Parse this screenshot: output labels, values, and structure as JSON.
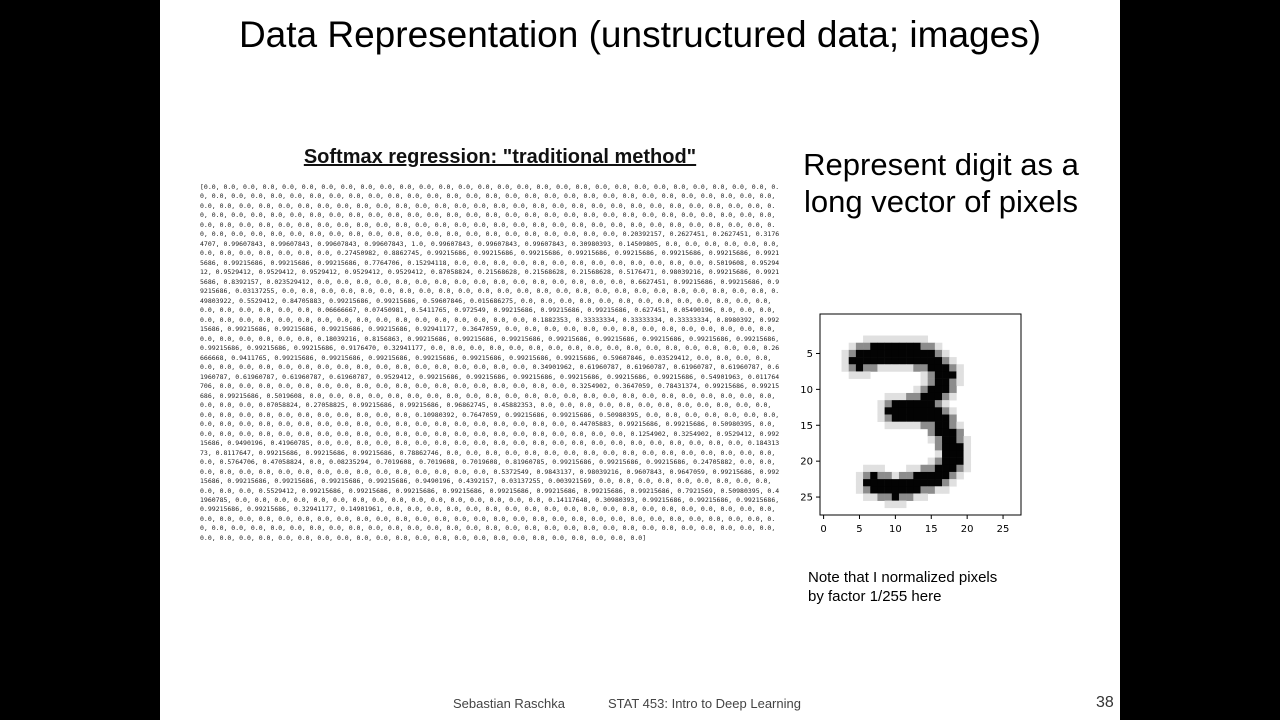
{
  "slide": {
    "title": "Data Representation (unstructured data; images)",
    "code_heading": "Softmax regression: \"traditional method\"",
    "right_heading_line1": "Represent digit as a",
    "right_heading_line2": "long vector of pixels",
    "note_line1": "Note that I normalized pixels",
    "note_line2": "by factor 1/255 here",
    "footer_author": "Sebastian Raschka",
    "footer_course": "STAT 453: Intro to Deep Learning",
    "page_number": "38"
  },
  "pixel_vector_text": "[0.0, 0.0, 0.0, 0.0, 0.0, 0.0, 0.0, 0.0, 0.0, 0.0, 0.0, 0.0, 0.0, 0.0, 0.0, 0.0, 0.0, 0.0, 0.0, 0.0, 0.0, 0.0, 0.0, 0.0, 0.0, 0.0, 0.0, 0.0, 0.0, 0.0, 0.0, 0.0, 0.0, 0.0, 0.0, 0.0, 0.0, 0.0, 0.0, 0.0, 0.0, 0.0, 0.0, 0.0, 0.0, 0.0, 0.0, 0.0, 0.0, 0.0, 0.0, 0.0, 0.0, 0.0, 0.0, 0.0, 0.0, 0.0, 0.0, 0.0, 0.0, 0.0, 0.0, 0.0, 0.0, 0.0, 0.0, 0.0, 0.0, 0.0, 0.0, 0.0, 0.0, 0.0, 0.0, 0.0, 0.0, 0.0, 0.0, 0.0, 0.0, 0.0, 0.0, 0.0, 0.0, 0.0, 0.0, 0.0, 0.0, 0.0, 0.0, 0.0, 0.0, 0.0, 0.0, 0.0, 0.0, 0.0, 0.0, 0.0, 0.0, 0.0, 0.0, 0.0, 0.0, 0.0, 0.0, 0.0, 0.0, 0.0, 0.0, 0.0, 0.0, 0.0, 0.0, 0.0, 0.0, 0.0, 0.0, 0.0, 0.0, 0.0, 0.0, 0.0, 0.0, 0.0, 0.0, 0.0, 0.0, 0.0, 0.0, 0.0, 0.0, 0.0, 0.0, 0.0, 0.0, 0.0, 0.0, 0.0, 0.0, 0.0, 0.0, 0.0, 0.0, 0.0, 0.0, 0.0, 0.0, 0.0, 0.0, 0.0, 0.0, 0.0, 0.0, 0.0, 0.0, 0.0, 0.0, 0.0, 0.0, 0.0, 0.0, 0.0, 0.0, 0.0, 0.0, 0.0, 0.0, 0.20392157, 0.2627451, 0.2627451, 0.31764707, 0.99607843, 0.99607843, 0.99607843, 0.99607843, 1.0, 0.99607843, 0.99607843, 0.99607843, 0.30980393, 0.14509805, 0.0, 0.0, 0.0, 0.0, 0.0, 0.0, 0.0, 0.0, 0.0, 0.0, 0.0, 0.0, 0.0, 0.27450982, 0.8862745, 0.99215686, 0.99215686, 0.99215686, 0.99215686, 0.99215686, 0.99215686, 0.99215686, 0.99215686, 0.99215686, 0.99215686, 0.99215686, 0.7764706, 0.15294118, 0.0, 0.0, 0.0, 0.0, 0.0, 0.0, 0.0, 0.0, 0.0, 0.0, 0.0, 0.0, 0.0, 0.5019608, 0.9529412, 0.9529412, 0.9529412, 0.9529412, 0.9529412, 0.9529412, 0.87058824, 0.21568628, 0.21568628, 0.21568628, 0.5176471, 0.98039216, 0.99215686, 0.99215686, 0.8392157, 0.023529412, 0.0, 0.0, 0.0, 0.0, 0.0, 0.0, 0.0, 0.0, 0.0, 0.0, 0.0, 0.0, 0.0, 0.0, 0.0, 0.0, 0.6627451, 0.99215686, 0.99215686, 0.99215686, 0.03137255, 0.0, 0.0, 0.0, 0.0, 0.0, 0.0, 0.0, 0.0, 0.0, 0.0, 0.0, 0.0, 0.0, 0.0, 0.0, 0.0, 0.0, 0.0, 0.0, 0.0, 0.0, 0.0, 0.0, 0.0, 0.0, 0.49803922, 0.5529412, 0.84705883, 0.99215686, 0.99215686, 0.59607846, 0.015686275, 0.0, 0.0, 0.0, 0.0, 0.0, 0.0, 0.0, 0.0, 0.0, 0.0, 0.0, 0.0, 0.0, 0.0, 0.0, 0.0, 0.0, 0.0, 0.0, 0.06666667, 0.07450981, 0.5411765, 0.972549, 0.99215686, 0.99215686, 0.99215686, 0.627451, 0.05490196, 0.0, 0.0, 0.0, 0.0, 0.0, 0.0, 0.0, 0.0, 0.0, 0.0, 0.0, 0.0, 0.0, 0.0, 0.0, 0.0, 0.0, 0.0, 0.0, 0.0, 0.1882353, 0.33333334, 0.33333334, 0.33333334, 0.8980392, 0.99215686, 0.99215686, 0.99215686, 0.99215686, 0.99215686, 0.92941177, 0.3647059, 0.0, 0.0, 0.0, 0.0, 0.0, 0.0, 0.0, 0.0, 0.0, 0.0, 0.0, 0.0, 0.0, 0.0, 0.0, 0.0, 0.0, 0.0, 0.0, 0.0, 0.18039216, 0.8156863, 0.99215686, 0.99215686, 0.99215686, 0.99215686, 0.99215686, 0.99215686, 0.99215686, 0.99215686, 0.99215686, 0.99215686, 0.99215686, 0.9176470, 0.32941177, 0.0, 0.0, 0.0, 0.0, 0.0, 0.0, 0.0, 0.0, 0.0, 0.0, 0.0, 0.0, 0.0, 0.0, 0.0, 0.0, 0.0, 0.26666668, 0.9411765, 0.99215686, 0.99215686, 0.99215686, 0.99215686, 0.99215686, 0.99215686, 0.99215686, 0.59607846, 0.03529412, 0.0, 0.0, 0.0, 0.0, 0.0, 0.0, 0.0, 0.0, 0.0, 0.0, 0.0, 0.0, 0.0, 0.0, 0.0, 0.0, 0.0, 0.0, 0.0, 0.0, 0.0, 0.34901962, 0.61960787, 0.61960787, 0.61960787, 0.61960787, 0.61960787, 0.61960787, 0.61960787, 0.61960787, 0.9529412, 0.99215686, 0.99215686, 0.99215686, 0.99215686, 0.99215686, 0.99215686, 0.54901963, 0.011764706, 0.0, 0.0, 0.0, 0.0, 0.0, 0.0, 0.0, 0.0, 0.0, 0.0, 0.0, 0.0, 0.0, 0.0, 0.0, 0.0, 0.0, 0.0, 0.3254902, 0.3647059, 0.78431374, 0.99215686, 0.99215686, 0.99215686, 0.5019608, 0.0, 0.0, 0.0, 0.0, 0.0, 0.0, 0.0, 0.0, 0.0, 0.0, 0.0, 0.0, 0.0, 0.0, 0.0, 0.0, 0.0, 0.0, 0.0, 0.0, 0.0, 0.0, 0.0, 0.0, 0.0, 0.0, 0.0, 0.07058824, 0.27058825, 0.99215686, 0.99215686, 0.96862745, 0.45882353, 0.0, 0.0, 0.0, 0.0, 0.0, 0.0, 0.0, 0.0, 0.0, 0.0, 0.0, 0.0, 0.0, 0.0, 0.0, 0.0, 0.0, 0.0, 0.0, 0.0, 0.0, 0.0, 0.0, 0.10980392, 0.7647059, 0.99215686, 0.99215686, 0.50980395, 0.0, 0.0, 0.0, 0.0, 0.0, 0.0, 0.0, 0.0, 0.0, 0.0, 0.0, 0.0, 0.0, 0.0, 0.0, 0.0, 0.0, 0.0, 0.0, 0.0, 0.0, 0.0, 0.0, 0.0, 0.0, 0.0, 0.44705883, 0.99215686, 0.99215686, 0.50980395, 0.0, 0.0, 0.0, 0.0, 0.0, 0.0, 0.0, 0.0, 0.0, 0.0, 0.0, 0.0, 0.0, 0.0, 0.0, 0.0, 0.0, 0.0, 0.0, 0.0, 0.0, 0.0, 0.0, 0.1254902, 0.3254902, 0.9529412, 0.99215686, 0.9490196, 0.41960785, 0.0, 0.0, 0.0, 0.0, 0.0, 0.0, 0.0, 0.0, 0.0, 0.0, 0.0, 0.0, 0.0, 0.0, 0.0, 0.0, 0.0, 0.0, 0.0, 0.0, 0.0, 0.0, 0.18431373, 0.8117647, 0.99215686, 0.99215686, 0.99215686, 0.78862746, 0.0, 0.0, 0.0, 0.0, 0.0, 0.0, 0.0, 0.0, 0.0, 0.0, 0.0, 0.0, 0.0, 0.0, 0.0, 0.0, 0.0, 0.0, 0.5764706, 0.47058824, 0.0, 0.08235294, 0.7019608, 0.7019608, 0.7019608, 0.81960785, 0.99215686, 0.99215686, 0.99215686, 0.24705882, 0.0, 0.0, 0.0, 0.0, 0.0, 0.0, 0.0, 0.0, 0.0, 0.0, 0.0, 0.0, 0.0, 0.0, 0.0, 0.0, 0.0, 0.5372549, 0.9843137, 0.98039216, 0.9607843, 0.9647059, 0.99215686, 0.99215686, 0.99215686, 0.99215686, 0.99215686, 0.99215686, 0.9490196, 0.4392157, 0.03137255, 0.003921569, 0.0, 0.0, 0.0, 0.0, 0.0, 0.0, 0.0, 0.0, 0.0, 0.0, 0.0, 0.0, 0.5529412, 0.99215686, 0.99215686, 0.99215686, 0.99215686, 0.99215686, 0.99215686, 0.99215686, 0.99215686, 0.7921569, 0.50980395, 0.41960785, 0.0, 0.0, 0.0, 0.0, 0.0, 0.0, 0.0, 0.0, 0.0, 0.0, 0.0, 0.0, 0.0, 0.0, 0.0, 0.0, 0.14117648, 0.30980393, 0.99215686, 0.99215686, 0.99215686, 0.99215686, 0.99215686, 0.32941177, 0.14901961, 0.0, 0.0, 0.0, 0.0, 0.0, 0.0, 0.0, 0.0, 0.0, 0.0, 0.0, 0.0, 0.0, 0.0, 0.0, 0.0, 0.0, 0.0, 0.0, 0.0, 0.0, 0.0, 0.0, 0.0, 0.0, 0.0, 0.0, 0.0, 0.0, 0.0, 0.0, 0.0, 0.0, 0.0, 0.0, 0.0, 0.0, 0.0, 0.0, 0.0, 0.0, 0.0, 0.0, 0.0, 0.0, 0.0, 0.0, 0.0, 0.0, 0.0, 0.0, 0.0, 0.0, 0.0, 0.0, 0.0, 0.0, 0.0, 0.0, 0.0, 0.0, 0.0, 0.0, 0.0, 0.0, 0.0, 0.0, 0.0, 0.0, 0.0, 0.0, 0.0, 0.0, 0.0, 0.0, 0.0, 0.0, 0.0, 0.0, 0.0, 0.0, 0.0, 0.0, 0.0, 0.0, 0.0, 0.0, 0.0, 0.0, 0.0, 0.0, 0.0, 0.0, 0.0, 0.0, 0.0, 0.0, 0.0, 0.0, 0.0, 0.0, 0.0]",
  "chart_data": {
    "type": "heatmap",
    "colormap": "Greys",
    "xticks": [
      "0",
      "5",
      "10",
      "15",
      "20",
      "25"
    ],
    "yticks": [
      "5",
      "10",
      "15",
      "20",
      "25"
    ],
    "xlim": [
      -0.5,
      27.5
    ],
    "ylim": [
      27.5,
      -0.5
    ],
    "strokes": [
      {
        "points": [
          [
            5,
            6
          ],
          [
            7,
            5
          ],
          [
            10,
            5
          ],
          [
            13,
            5
          ],
          [
            15,
            6
          ],
          [
            17,
            8
          ],
          [
            16,
            10
          ],
          [
            14,
            12
          ],
          [
            12,
            13
          ]
        ],
        "intensity": 0.99
      },
      {
        "points": [
          [
            10,
            13
          ],
          [
            13,
            13
          ],
          [
            16,
            14
          ],
          [
            17,
            16
          ],
          [
            18,
            18
          ],
          [
            18,
            20
          ],
          [
            16,
            22
          ],
          [
            13,
            23
          ],
          [
            10,
            24
          ],
          [
            7,
            23
          ]
        ],
        "intensity": 0.99
      }
    ]
  }
}
